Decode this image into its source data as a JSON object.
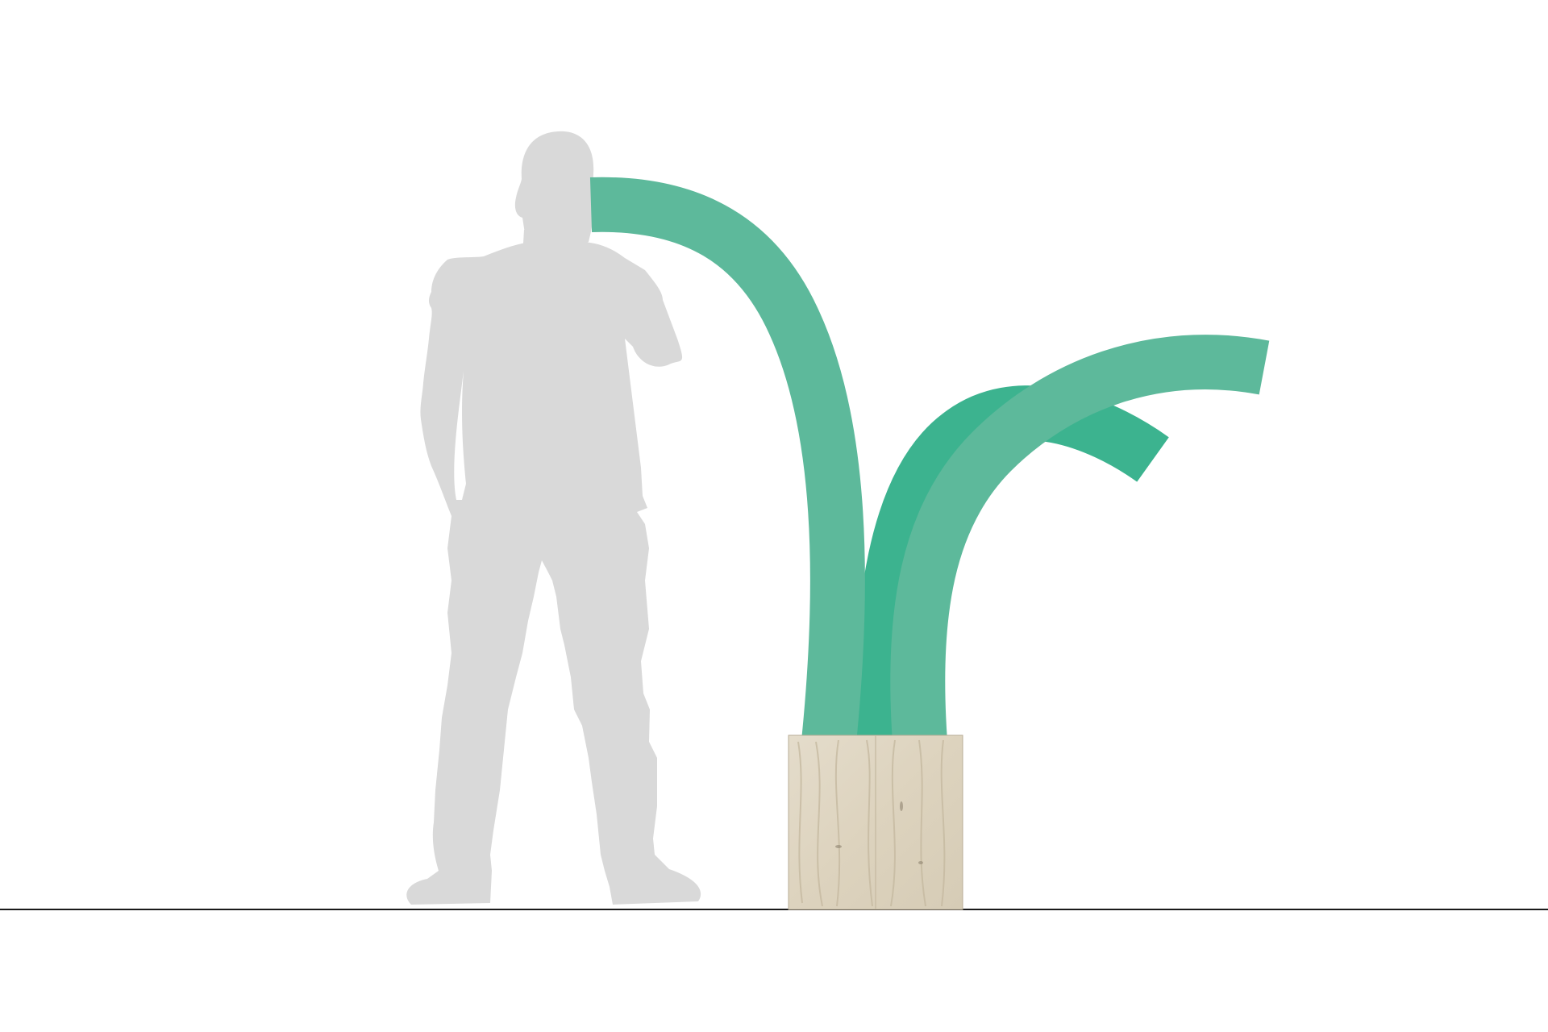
{
  "scene": {
    "description_visible_text": [],
    "colors": {
      "background": "#ffffff",
      "ground_line": "#1a1a1a",
      "person_silhouette": "#d9d9d9",
      "leaf_light": "#5db99b",
      "leaf_dark": "#3cb38f",
      "wood_base": "#ddd4c0",
      "wood_grain": "#c9bea6",
      "wood_knot": "#8f8470"
    },
    "icons": {
      "person": "person-silhouette-icon",
      "plant": "leaf-sculpture-icon",
      "planter": "wood-planter-icon"
    }
  }
}
